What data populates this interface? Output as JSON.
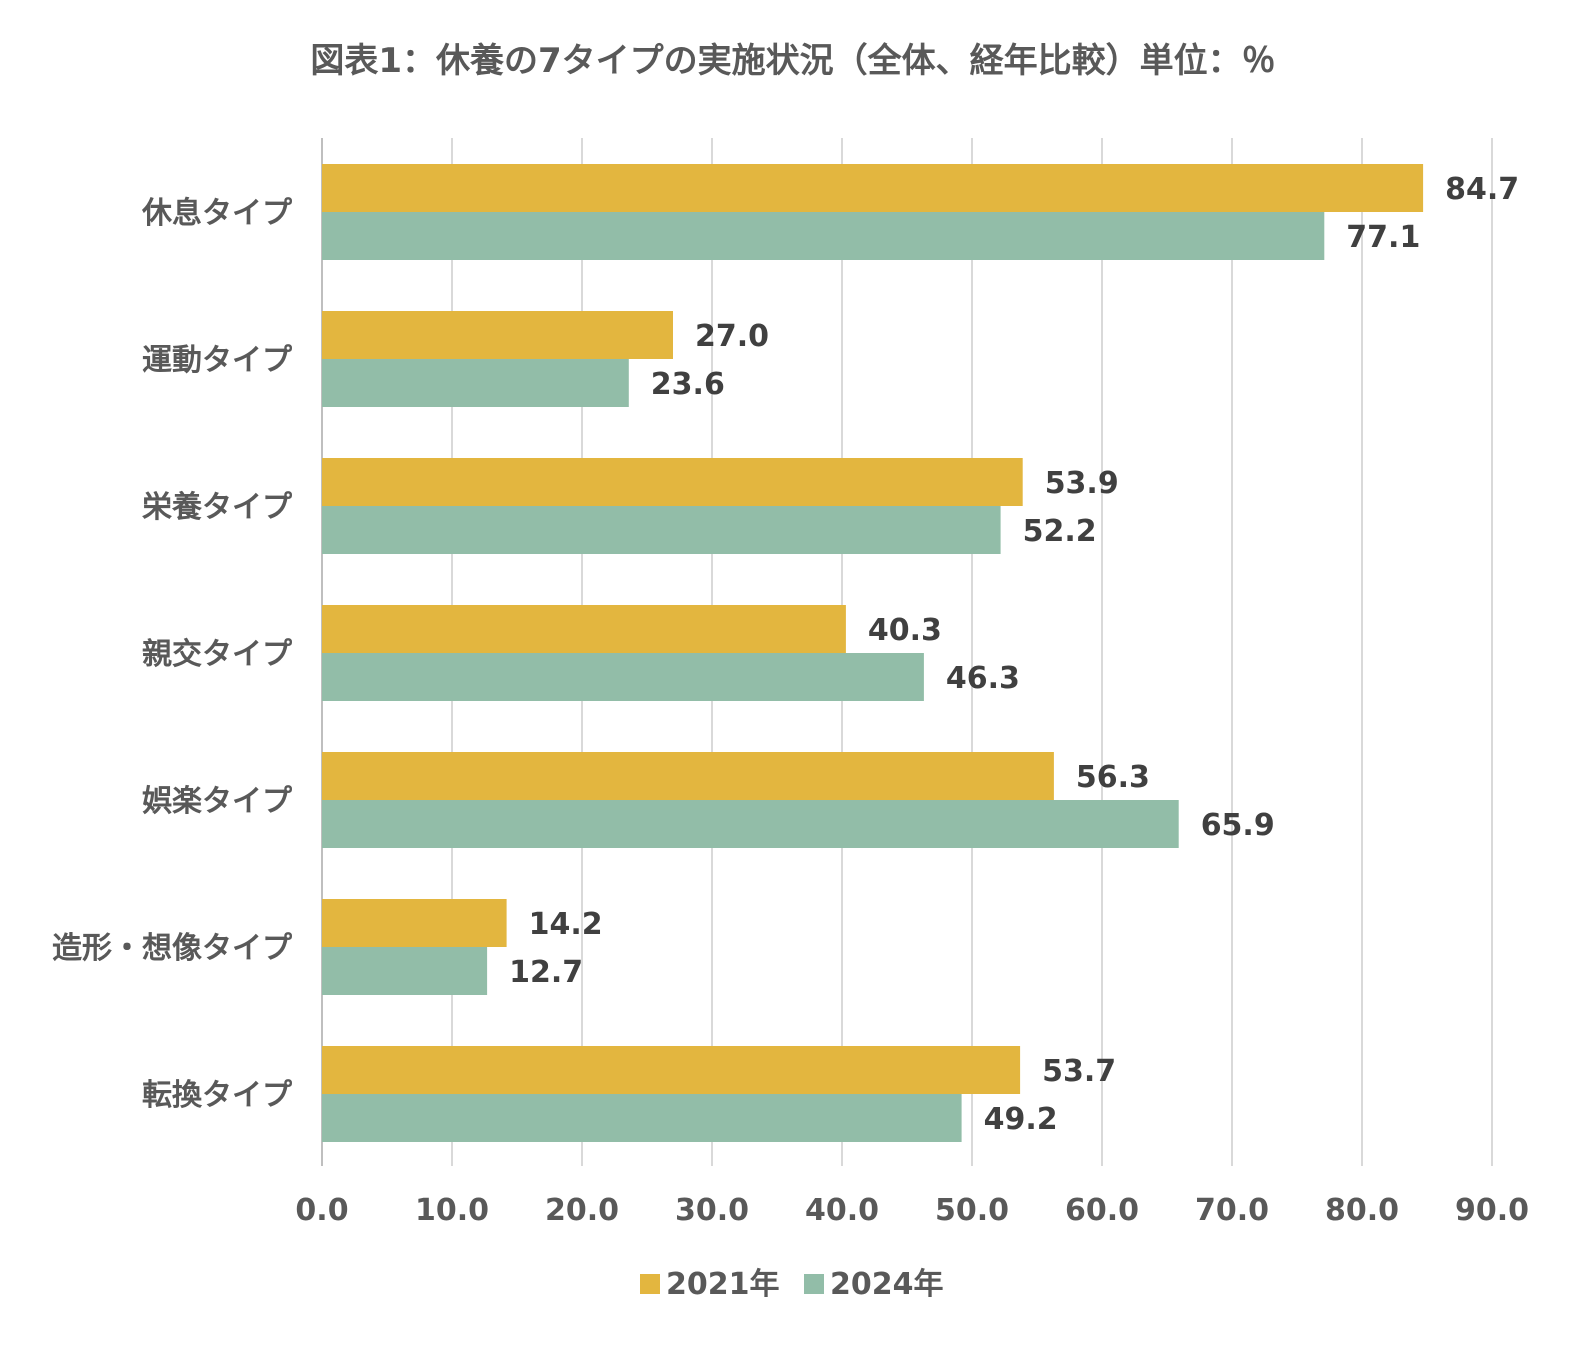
{
  "chart_data": {
    "type": "bar",
    "orientation": "horizontal",
    "title": "図表1：休養の7タイプの実施状況（全体、経年比較）単位：％",
    "categories": [
      "休息タイプ",
      "運動タイプ",
      "栄養タイプ",
      "親交タイプ",
      "娯楽タイプ",
      "造形・想像タイプ",
      "転換タイプ"
    ],
    "series": [
      {
        "name": "2021年",
        "color": "#E3B63F",
        "values": [
          84.7,
          27.0,
          53.9,
          40.3,
          56.3,
          14.2,
          53.7
        ]
      },
      {
        "name": "2024年",
        "color": "#92BDA8",
        "values": [
          77.1,
          23.6,
          52.2,
          46.3,
          65.9,
          12.7,
          49.2
        ]
      }
    ],
    "xlim": [
      0,
      90
    ],
    "xticks": [
      "0.0",
      "10.0",
      "20.0",
      "30.0",
      "40.0",
      "50.0",
      "60.0",
      "70.0",
      "80.0",
      "90.0"
    ],
    "grid": true,
    "legend_position": "bottom",
    "xlabel": "",
    "ylabel": ""
  }
}
